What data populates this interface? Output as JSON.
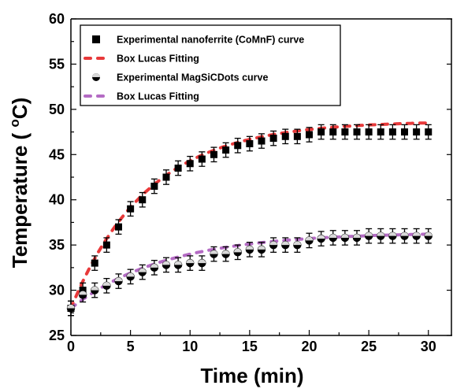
{
  "chart_data": {
    "type": "scatter",
    "title": "",
    "xlabel": "Time (min)",
    "ylabel_main": "Temperature ( ",
    "ylabel_sup": "o",
    "ylabel_tail": "C)",
    "xlim": [
      0,
      32
    ],
    "ylim": [
      25,
      60
    ],
    "xticks": [
      0,
      5,
      10,
      15,
      20,
      25,
      30
    ],
    "yticks": [
      25,
      30,
      35,
      40,
      45,
      50,
      55,
      60
    ],
    "legend_position": "top-left",
    "series": [
      {
        "name": "Experimental nanoferrite (CoMnF) curve",
        "kind": "markers",
        "marker": "square",
        "color": "#000000",
        "x": [
          0,
          1,
          2,
          3,
          4,
          5,
          6,
          7,
          8,
          9,
          10,
          11,
          12,
          13,
          14,
          15,
          16,
          17,
          18,
          19,
          20,
          21,
          22,
          23,
          24,
          25,
          26,
          27,
          28,
          29,
          30
        ],
        "y": [
          28,
          30,
          33,
          35,
          37,
          39,
          40,
          41.5,
          42.5,
          43.5,
          44,
          44.5,
          45,
          45.5,
          46,
          46.2,
          46.5,
          46.8,
          47,
          47,
          47.2,
          47.5,
          47.5,
          47.5,
          47.5,
          47.5,
          47.5,
          47.5,
          47.5,
          47.5,
          47.5
        ],
        "err": 0.8
      },
      {
        "name": "Box Lucas Fitting",
        "kind": "fit",
        "color": "#e8393a",
        "a": 48.7,
        "b": 20.7,
        "k": 0.155
      },
      {
        "name": "Experimental MagSiCDots curve",
        "kind": "markers",
        "marker": "circle",
        "color": "#000000",
        "x": [
          0,
          1,
          2,
          3,
          4,
          5,
          6,
          7,
          8,
          9,
          10,
          11,
          12,
          13,
          14,
          15,
          16,
          17,
          18,
          19,
          20,
          21,
          22,
          23,
          24,
          25,
          26,
          27,
          28,
          29,
          30
        ],
        "y": [
          28,
          29.5,
          30,
          30.5,
          31,
          31.5,
          32,
          32.5,
          32.8,
          32.8,
          33,
          33,
          34,
          34,
          34.2,
          34.5,
          34.5,
          35,
          35,
          35,
          35.5,
          35.7,
          35.8,
          35.8,
          35.8,
          36,
          36,
          36,
          36,
          36,
          36
        ],
        "err": 0.8
      },
      {
        "name": "Box Lucas Fitting",
        "kind": "fit",
        "color": "#b46bc4",
        "a": 36.4,
        "b": 8.4,
        "k": 0.125
      }
    ]
  }
}
